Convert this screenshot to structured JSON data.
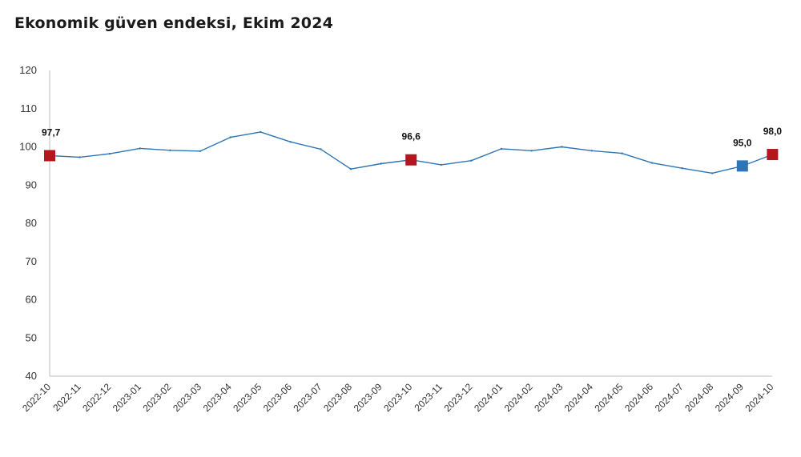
{
  "title": "Ekonomik güven endeksi, Ekim 2024",
  "chart_data": {
    "type": "line",
    "title": "Ekonomik güven endeksi, Ekim 2024",
    "xlabel": "",
    "ylabel": "",
    "ylim": [
      40,
      120
    ],
    "yticks": [
      "40",
      "50",
      "60",
      "70",
      "80",
      "90",
      "100",
      "110",
      "120"
    ],
    "grid": false,
    "x": [
      "2022-10",
      "2022-11",
      "2022-12",
      "2023-01",
      "2023-02",
      "2023-03",
      "2023-04",
      "2023-05",
      "2023-06",
      "2023-07",
      "2023-08",
      "2023-09",
      "2023-10",
      "2023-11",
      "2023-12",
      "2024-01",
      "2024-02",
      "2024-03",
      "2024-04",
      "2024-05",
      "2024-06",
      "2024-07",
      "2024-08",
      "2024-09",
      "2024-10"
    ],
    "series": [
      {
        "values": [
          97.7,
          97.3,
          98.2,
          99.6,
          99.1,
          98.9,
          102.5,
          103.9,
          101.3,
          99.4,
          94.2,
          95.6,
          96.6,
          95.3,
          96.4,
          99.5,
          99.0,
          100.0,
          99.0,
          98.3,
          95.8,
          94.4,
          93.1,
          95.0,
          98.0
        ],
        "color": "#2e75b6"
      }
    ],
    "highlights": [
      {
        "x": "2022-10",
        "label": "97,7",
        "color": "#b3171d"
      },
      {
        "x": "2023-10",
        "label": "96,6",
        "color": "#b3171d"
      },
      {
        "x": "2024-09",
        "label": "95,0",
        "color": "#2e75b6"
      },
      {
        "x": "2024-10",
        "label": "98,0",
        "color": "#b3171d"
      }
    ],
    "axis_color": "#bfbfbf"
  }
}
